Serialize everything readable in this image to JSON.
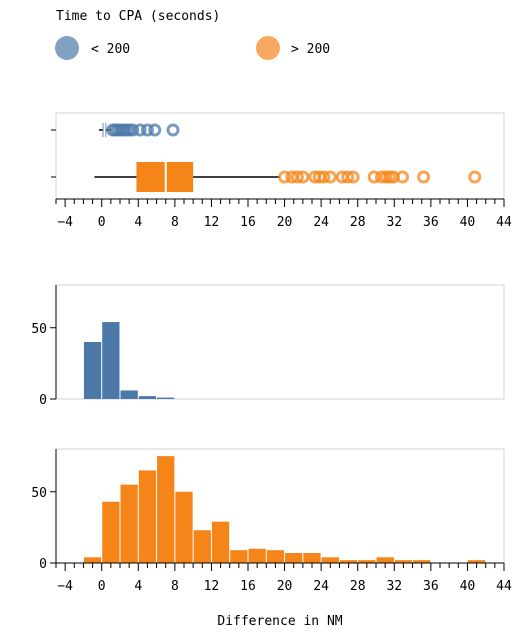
{
  "chart_data": {
    "type": "composite",
    "legend": {
      "title": "Time to CPA (seconds)",
      "placement": "top-left",
      "items": [
        {
          "label": "< 200",
          "color": "#4c78a8"
        },
        {
          "label": "> 200",
          "color": "#f58518"
        }
      ]
    },
    "x_axis": {
      "domain": [
        -5,
        44
      ],
      "ticks": [
        -4,
        0,
        4,
        8,
        12,
        16,
        20,
        24,
        28,
        32,
        36,
        40,
        44
      ],
      "tick_labels": [
        "−4",
        "0",
        "4",
        "8",
        "12",
        "16",
        "20",
        "24",
        "28",
        "32",
        "36",
        "40",
        "44"
      ],
      "minor_step": 1,
      "xlabel": "Difference in NM"
    },
    "boxplot": {
      "type": "boxplot",
      "series": [
        {
          "name": "< 200",
          "color": "#4c78a8",
          "whisker_low": -0.3,
          "q1": 0.1,
          "median": 0.3,
          "q3": 0.5,
          "whisker_high": 1.0,
          "outliers": [
            1.2,
            1.5,
            1.8,
            2.1,
            2.4,
            2.7,
            3.0,
            3.4,
            4.2,
            5.0,
            5.8,
            7.8
          ]
        },
        {
          "name": "> 200",
          "color": "#f58518",
          "whisker_low": -0.8,
          "q1": 3.8,
          "median": 7.0,
          "q3": 10.0,
          "whisker_high": 19.5,
          "outliers": [
            20.0,
            20.8,
            21.4,
            22.0,
            23.3,
            23.8,
            24.3,
            25.0,
            26.3,
            26.9,
            27.5,
            29.8,
            30.6,
            31.1,
            31.5,
            31.9,
            32.9,
            35.2,
            40.8
          ]
        }
      ]
    },
    "histograms": [
      {
        "type": "bar",
        "name": "< 200",
        "color": "#4c78a8",
        "ylim": [
          0,
          80
        ],
        "yticks": [
          0,
          50
        ],
        "bin_width": 2,
        "bins": [
          {
            "x0": -2,
            "count": 40
          },
          {
            "x0": 0,
            "count": 54
          },
          {
            "x0": 2,
            "count": 6
          },
          {
            "x0": 4,
            "count": 2
          },
          {
            "x0": 6,
            "count": 1
          }
        ]
      },
      {
        "type": "bar",
        "name": "> 200",
        "color": "#f58518",
        "ylim": [
          0,
          80
        ],
        "yticks": [
          0,
          50
        ],
        "bin_width": 2,
        "bins": [
          {
            "x0": -2,
            "count": 4
          },
          {
            "x0": 0,
            "count": 43
          },
          {
            "x0": 2,
            "count": 55
          },
          {
            "x0": 4,
            "count": 65
          },
          {
            "x0": 6,
            "count": 75
          },
          {
            "x0": 8,
            "count": 50
          },
          {
            "x0": 10,
            "count": 23
          },
          {
            "x0": 12,
            "count": 29
          },
          {
            "x0": 14,
            "count": 9
          },
          {
            "x0": 16,
            "count": 10
          },
          {
            "x0": 18,
            "count": 9
          },
          {
            "x0": 20,
            "count": 7
          },
          {
            "x0": 22,
            "count": 7
          },
          {
            "x0": 24,
            "count": 4
          },
          {
            "x0": 26,
            "count": 2
          },
          {
            "x0": 28,
            "count": 2
          },
          {
            "x0": 30,
            "count": 4
          },
          {
            "x0": 32,
            "count": 2
          },
          {
            "x0": 34,
            "count": 2
          },
          {
            "x0": 40,
            "count": 2
          }
        ]
      }
    ]
  }
}
